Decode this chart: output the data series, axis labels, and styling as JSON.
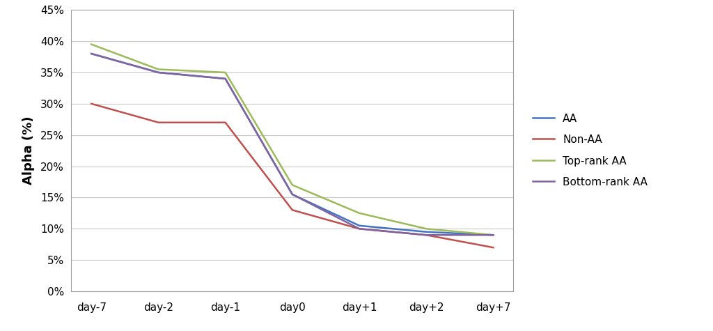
{
  "x_labels": [
    "day-7",
    "day-2",
    "day-1",
    "day0",
    "day+1",
    "day+2",
    "day+7"
  ],
  "series": [
    {
      "label": "AA",
      "color": "#4472C4",
      "values": [
        38.0,
        35.0,
        34.0,
        15.5,
        10.5,
        9.5,
        9.0
      ]
    },
    {
      "label": "Non-AA",
      "color": "#C0504D",
      "values": [
        30.0,
        27.0,
        27.0,
        13.0,
        10.0,
        9.0,
        7.0
      ]
    },
    {
      "label": "Top-rank AA",
      "color": "#9BBB59",
      "values": [
        39.5,
        35.5,
        35.0,
        17.0,
        12.5,
        10.0,
        9.0
      ]
    },
    {
      "label": "Bottom-rank AA",
      "color": "#8064A2",
      "values": [
        38.0,
        35.0,
        34.0,
        15.5,
        10.0,
        9.0,
        9.0
      ]
    }
  ],
  "ylabel": "Alpha (%)",
  "ylim": [
    0,
    45
  ],
  "yticks": [
    0,
    5,
    10,
    15,
    20,
    25,
    30,
    35,
    40,
    45
  ],
  "background_color": "#FFFFFF",
  "plot_bg_color": "#FFFFFF",
  "grid_color": "#C8C8C8",
  "spine_color": "#A0A0A0",
  "linewidth": 1.8,
  "figure_width": 10.24,
  "figure_height": 4.75,
  "ylabel_fontsize": 13,
  "tick_fontsize": 11,
  "legend_fontsize": 11
}
